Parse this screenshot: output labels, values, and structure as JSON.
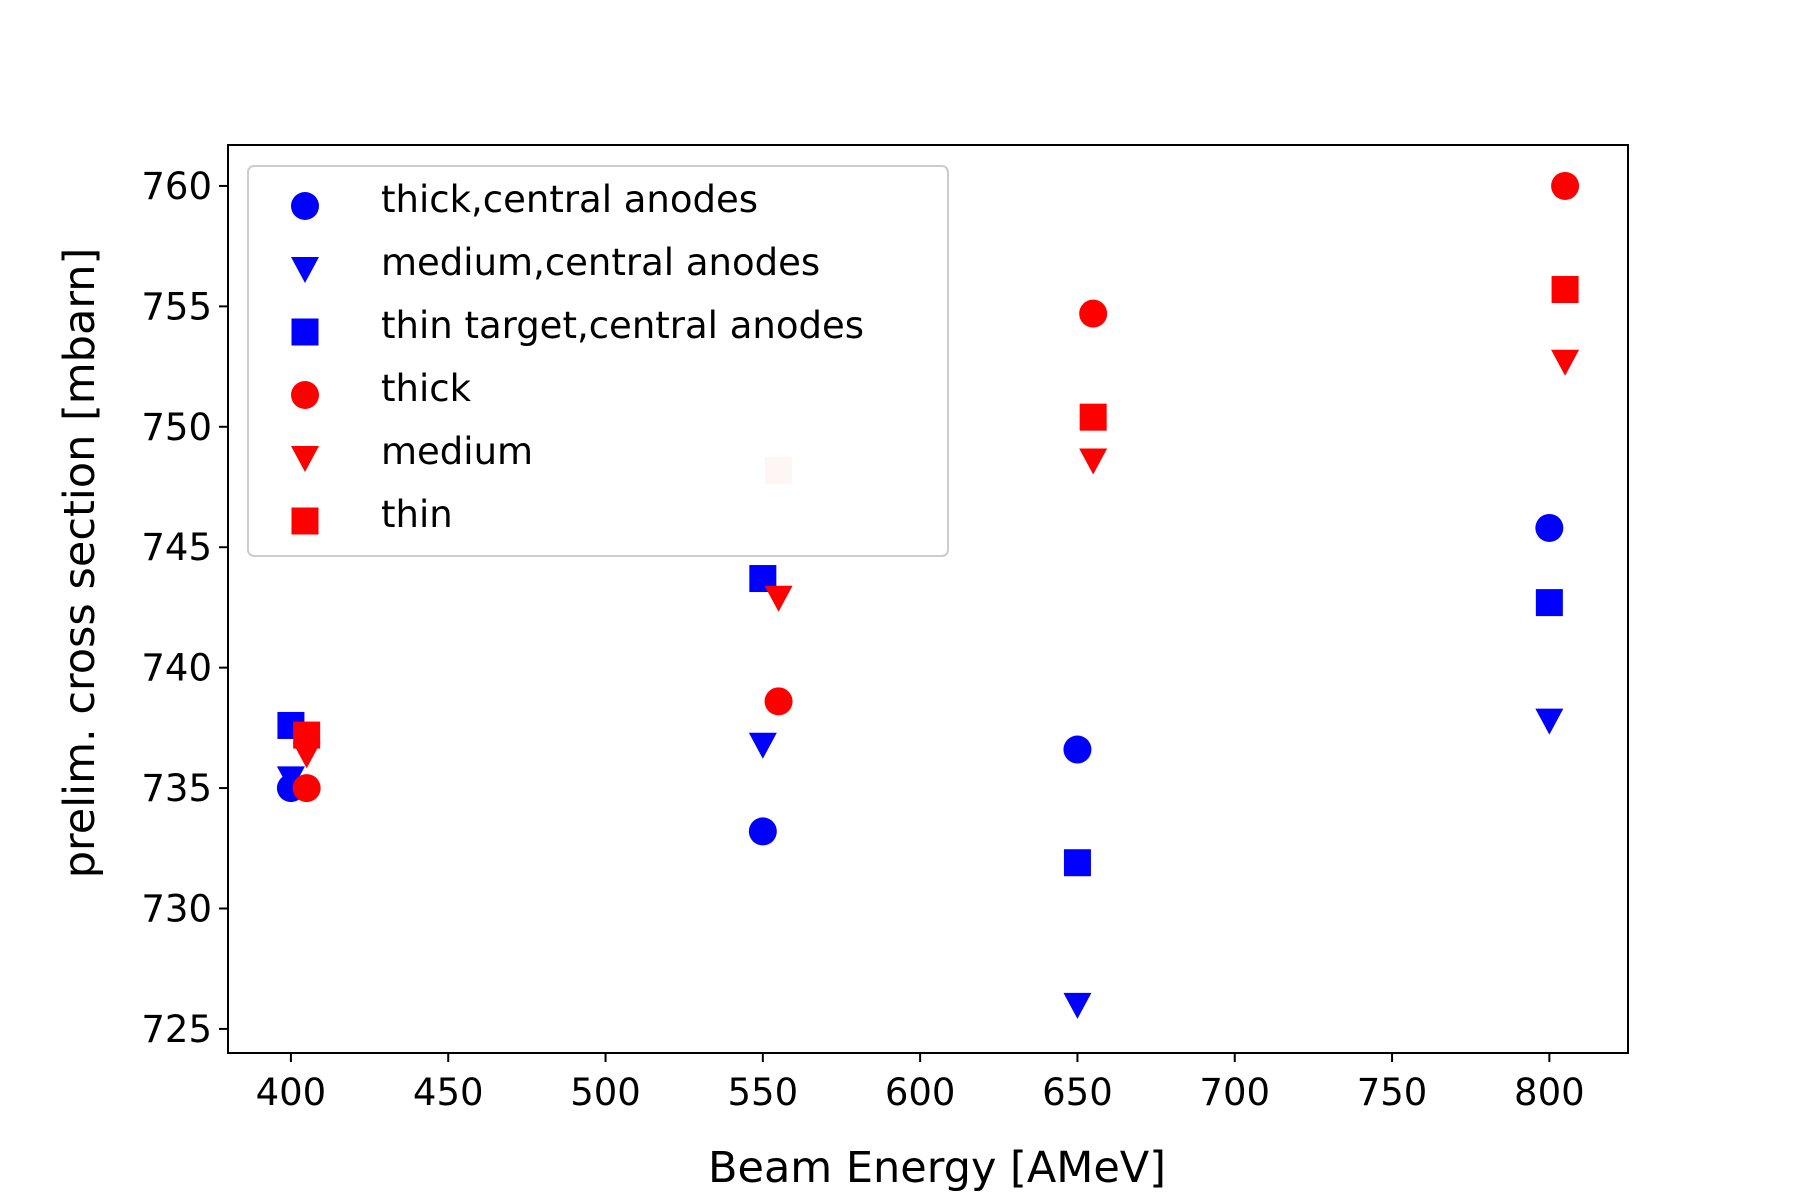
{
  "chart_data": {
    "type": "scatter",
    "title": "",
    "xlabel": "Beam Energy [AMeV]",
    "ylabel": "prelim. cross section [mbarn]",
    "xlim": [
      380,
      825
    ],
    "ylim": [
      724,
      761.7
    ],
    "xticks": [
      400,
      450,
      500,
      550,
      600,
      650,
      700,
      750,
      800
    ],
    "yticks": [
      725,
      730,
      735,
      740,
      745,
      750,
      755,
      760
    ],
    "grid": false,
    "legend_position": "top-left",
    "series": [
      {
        "name": "thick,central anodes",
        "marker": "circle",
        "color": "#0000ff",
        "points": [
          [
            400,
            735.0
          ],
          [
            550,
            733.2
          ],
          [
            650,
            736.6
          ],
          [
            800,
            745.8
          ]
        ]
      },
      {
        "name": "medium,central anodes",
        "marker": "triangle-down",
        "color": "#0000ff",
        "points": [
          [
            400,
            735.4
          ],
          [
            550,
            736.8
          ],
          [
            650,
            726.0
          ],
          [
            800,
            737.8
          ]
        ]
      },
      {
        "name": "thin target,central anodes",
        "marker": "square",
        "color": "#0000ff",
        "points": [
          [
            400,
            737.6
          ],
          [
            550,
            743.7
          ],
          [
            650,
            731.9
          ],
          [
            800,
            742.7
          ]
        ]
      },
      {
        "name": "thick",
        "marker": "circle",
        "color": "#ff0000",
        "points": [
          [
            405,
            735.0
          ],
          [
            555,
            738.6
          ],
          [
            655,
            754.7
          ],
          [
            805,
            760.0
          ]
        ]
      },
      {
        "name": "medium",
        "marker": "triangle-down",
        "color": "#ff0000",
        "points": [
          [
            405,
            736.4
          ],
          [
            555,
            742.9
          ],
          [
            655,
            748.6
          ],
          [
            805,
            752.7
          ]
        ]
      },
      {
        "name": "thin",
        "marker": "square",
        "color": "#ff0000",
        "points": [
          [
            405,
            737.2
          ],
          [
            555,
            748.2,
            "#f9cccc"
          ],
          [
            655,
            750.4
          ],
          [
            805,
            755.7
          ]
        ]
      }
    ]
  }
}
